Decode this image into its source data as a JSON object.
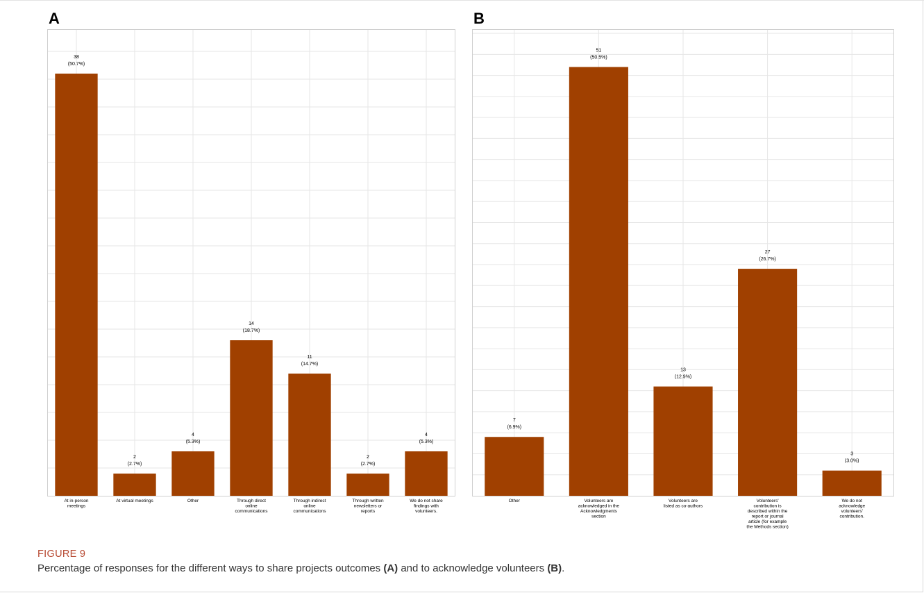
{
  "figure": {
    "label": "FIGURE 9",
    "caption_parts": [
      "Percentage of responses for the different ways to share projects outcomes ",
      "(A)",
      " and to acknowledge volunteers ",
      "(B)",
      "."
    ]
  },
  "colors": {
    "bar": "#a04000",
    "grid": "#e6e6e6",
    "panel_border": "#cfcfcf"
  },
  "chart_data": [
    {
      "type": "bar",
      "panel": "A",
      "ylim": [
        0,
        42
      ],
      "grid": true,
      "categories": [
        [
          "At in-person",
          "meetings"
        ],
        [
          "At virtual meetings"
        ],
        [
          "Other"
        ],
        [
          "Through direct",
          "online",
          "communications"
        ],
        [
          "Through indirect",
          "online",
          "communications"
        ],
        [
          "Through written",
          "newsletters or",
          "reports"
        ],
        [
          "We do not share",
          "findings with",
          "volunteers."
        ]
      ],
      "values": [
        38,
        2,
        4,
        14,
        11,
        2,
        4
      ],
      "percent_labels": [
        "(50.7%)",
        "(2.7%)",
        "(5.3%)",
        "(18.7%)",
        "(14.7%)",
        "(2.7%)",
        "(5.3%)"
      ]
    },
    {
      "type": "bar",
      "panel": "B",
      "ylim": [
        0,
        55.5
      ],
      "grid": true,
      "categories": [
        [
          "Other"
        ],
        [
          "Volunteers are",
          "acknowledged in the",
          "Acknowledgments",
          "section"
        ],
        [
          "Volunteers are",
          "listed as co-authors"
        ],
        [
          "Volunteers'",
          "contribution is",
          "described within the",
          "report or journal",
          "article (for example",
          "the Methods section)"
        ],
        [
          "We do not",
          "acknowledge",
          "volunteers'",
          "contribution."
        ]
      ],
      "values": [
        7,
        51,
        13,
        27,
        3
      ],
      "percent_labels": [
        "(6.9%)",
        "(50.5%)",
        "(12.9%)",
        "(26.7%)",
        "(3.0%)"
      ]
    }
  ]
}
